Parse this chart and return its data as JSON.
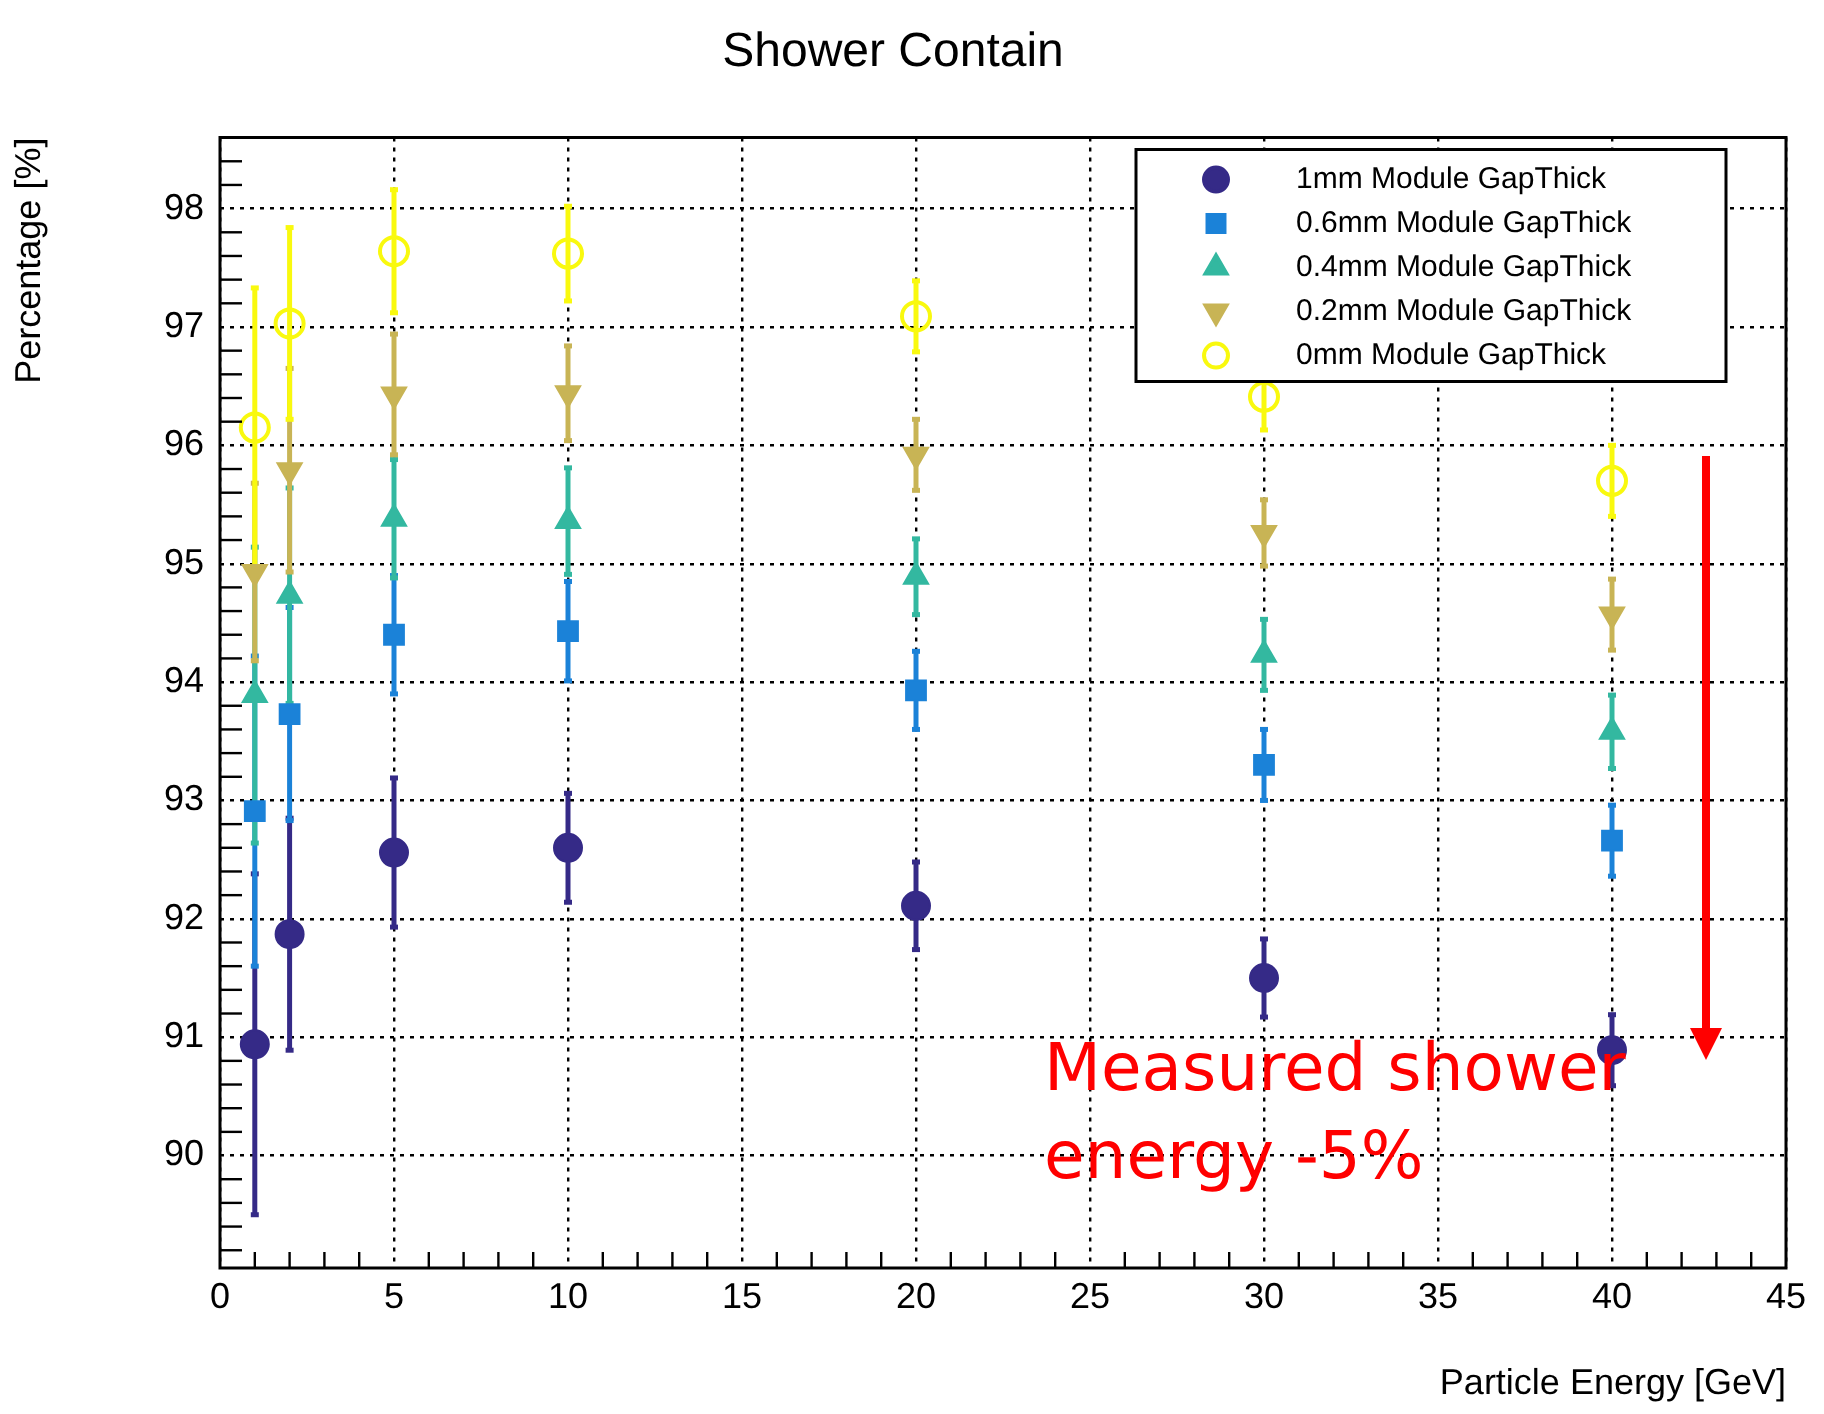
{
  "chart_data": {
    "type": "scatter",
    "title": "Shower Contain",
    "xlabel": "Particle Energy [GeV]",
    "ylabel": "Percentage [%]",
    "x": [
      1,
      2,
      5,
      10,
      20,
      30,
      40
    ],
    "series": [
      {
        "name": "1mm Module GapThick",
        "color": "#352a87",
        "marker": "circle",
        "values": [
          90.94,
          91.87,
          92.56,
          92.6,
          92.11,
          91.5,
          90.89
        ],
        "errors": [
          1.44,
          0.98,
          0.63,
          0.46,
          0.37,
          0.33,
          0.3
        ]
      },
      {
        "name": "0.6mm Module GapThick",
        "color": "#1b82d8",
        "marker": "square",
        "values": [
          92.91,
          93.73,
          94.4,
          94.43,
          93.93,
          93.3,
          92.66
        ],
        "errors": [
          1.31,
          0.9,
          0.5,
          0.42,
          0.33,
          0.3,
          0.3
        ]
      },
      {
        "name": "0.4mm Module GapThick",
        "color": "#33b8a0",
        "marker": "triangle",
        "values": [
          93.89,
          94.73,
          95.38,
          95.36,
          94.89,
          94.23,
          93.58
        ],
        "errors": [
          1.25,
          0.91,
          0.5,
          0.45,
          0.32,
          0.3,
          0.31
        ]
      },
      {
        "name": "0.2mm Module GapThick",
        "color": "#c8b455",
        "marker": "triangle-down",
        "values": [
          94.93,
          95.79,
          96.43,
          96.44,
          95.92,
          95.26,
          94.57
        ],
        "errors": [
          0.75,
          0.86,
          0.51,
          0.4,
          0.3,
          0.28,
          0.3
        ]
      },
      {
        "name": "0mm Module GapThick",
        "color": "#f9f90e",
        "marker": "circle-open",
        "values": [
          96.15,
          97.03,
          97.64,
          97.62,
          97.09,
          96.41,
          95.7
        ],
        "errors": [
          1.18,
          0.81,
          0.52,
          0.4,
          0.3,
          0.28,
          0.3
        ]
      }
    ],
    "xlim": [
      0,
      45
    ],
    "xticks": [
      0,
      5,
      10,
      15,
      20,
      25,
      30,
      35,
      40,
      45
    ],
    "ylim": [
      89.05,
      98.6
    ],
    "yticks": [
      90,
      91,
      92,
      93,
      94,
      95,
      96,
      97,
      98
    ],
    "grid": true,
    "legend": "top right",
    "annotations": [
      "Measured shower energy -5%"
    ]
  }
}
